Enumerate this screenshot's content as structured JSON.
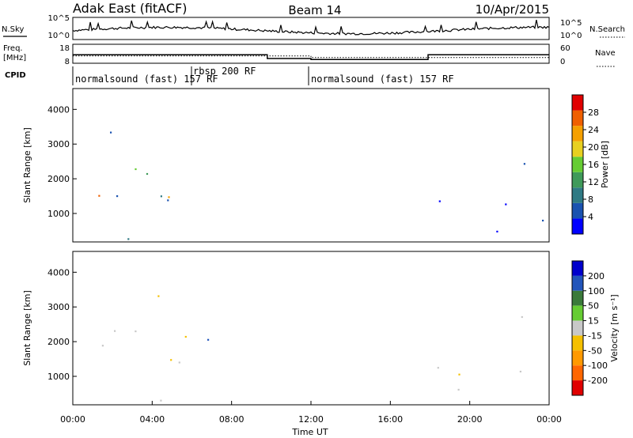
{
  "header": {
    "station": "Adak East (fitACF)",
    "beam": "Beam 14",
    "date": "10/Apr/2015"
  },
  "left_labels": {
    "nsky": "N.Sky",
    "freq": "Freq.",
    "freq_unit": "[MHz]",
    "cpid": "CPID"
  },
  "right_labels": {
    "nsearch": "N.Search",
    "nave": "Nave"
  },
  "cpid_segments": [
    {
      "label": "normalsound (fast) 157 RF"
    },
    {
      "label": "rbsp 200 RF"
    },
    {
      "label": "normalsound (fast) 157 RF"
    }
  ],
  "axis_labels": {
    "ylabel": "Slant Range [km]",
    "xlabel": "Time UT",
    "power_cb_label": "Power [dB]",
    "velocity_cb_label": "Velocity [m s⁻¹]"
  },
  "colors": {
    "power_scale": [
      "#0000ff",
      "#1a52b0",
      "#2f7a84",
      "#3f9a5a",
      "#66cc33",
      "#e8d020",
      "#f5a000",
      "#f06000",
      "#e00000"
    ],
    "velocity_scale": [
      "#0000cc",
      "#2255bb",
      "#3a7a3a",
      "#66cc33",
      "#c8c8c8",
      "#f5c000",
      "#ff9900",
      "#ff6600",
      "#e00000"
    ]
  },
  "chart_data": [
    {
      "type": "line",
      "title": "N.Sky / N.Search",
      "x_range_hours": [
        0,
        24
      ],
      "left_ticks": [
        "10^5",
        "10^0"
      ],
      "right_ticks": [
        "10^5",
        "10^0"
      ]
    },
    {
      "type": "line",
      "title": "Freq. / Nave",
      "x_range_hours": [
        0,
        24
      ],
      "freq_ticks": [
        "18",
        "8"
      ],
      "nave_ticks": [
        "60",
        "0"
      ],
      "freq_steps": [
        {
          "start": 0.0,
          "end": 9.8,
          "value": 12.5
        },
        {
          "start": 9.8,
          "end": 12.0,
          "value": 10.5
        },
        {
          "start": 12.0,
          "end": 17.9,
          "value": 10.0
        },
        {
          "start": 17.9,
          "end": 24.0,
          "value": 12.5
        }
      ],
      "nave_steps": [
        {
          "start": 0.0,
          "end": 12.0,
          "value": 23
        },
        {
          "start": 12.0,
          "end": 24.0,
          "value": 18
        }
      ]
    },
    {
      "type": "heatmap",
      "title": "",
      "ylabel": "Slant Range [km]",
      "y_range_km": [
        180,
        4600
      ],
      "y_ticks": [
        1000,
        2000,
        3000,
        4000
      ],
      "x_range_hours": [
        0,
        24
      ],
      "colorbar_label": "Power [dB]",
      "colorbar_ticks": [
        4,
        8,
        12,
        16,
        20,
        24,
        28
      ],
      "colorbar_range": [
        0,
        32
      ]
    },
    {
      "type": "heatmap",
      "title": "",
      "ylabel": "Slant Range [km]",
      "y_range_km": [
        180,
        4600
      ],
      "y_ticks": [
        1000,
        2000,
        3000,
        4000
      ],
      "x_range_hours": [
        0,
        24
      ],
      "x_tick_labels": [
        "00:00",
        "04:00",
        "08:00",
        "12:00",
        "16:00",
        "20:00",
        "00:00"
      ],
      "xlabel": "Time UT",
      "colorbar_label": "Velocity [m s⁻¹]",
      "colorbar_ticks": [
        200,
        100,
        50,
        15,
        -15,
        -50,
        -100,
        -200
      ]
    }
  ]
}
